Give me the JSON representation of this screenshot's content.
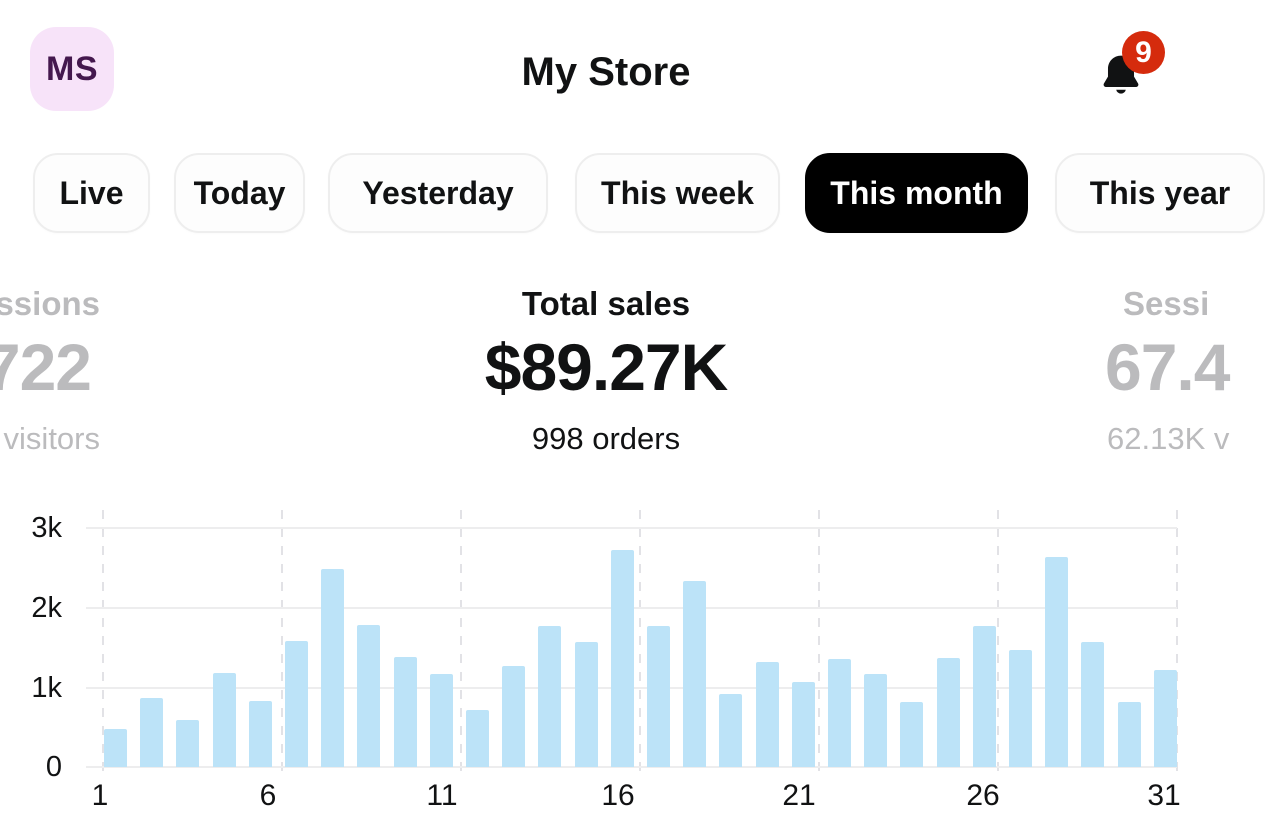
{
  "header": {
    "avatar_initials": "MS",
    "title": "My Store",
    "notification_count": "9",
    "icons": {
      "bell": "bell-icon"
    }
  },
  "tabs": {
    "items": [
      {
        "label": "Live",
        "selected": false
      },
      {
        "label": "Today",
        "selected": false
      },
      {
        "label": "Yesterday",
        "selected": false
      },
      {
        "label": "This week",
        "selected": false
      },
      {
        "label": "This month",
        "selected": true
      },
      {
        "label": "This year",
        "selected": false
      }
    ]
  },
  "stats": {
    "left_partial": {
      "label": "ssions",
      "value": "722",
      "subtitle": "visitors"
    },
    "center": {
      "label": "Total sales",
      "value": "$89.27K",
      "subtitle": "998 orders"
    },
    "right_partial": {
      "label": "Sessi",
      "value": "67.4",
      "subtitle": "62.13K v"
    }
  },
  "colors": {
    "bar_blue": "#BCE3F8",
    "badge_red": "#D52B0D",
    "avatar_bg": "#F7E3F9",
    "avatar_text": "#44184E",
    "selected_tab_bg": "#000000",
    "muted_stat_text": "#BBBBBD",
    "gridline": "#EDEDEE"
  },
  "chart_data": {
    "type": "bar",
    "title": "",
    "xlabel": "",
    "ylabel": "",
    "x": [
      1,
      2,
      3,
      4,
      5,
      6,
      7,
      8,
      9,
      10,
      11,
      12,
      13,
      14,
      15,
      16,
      17,
      18,
      19,
      20,
      21,
      22,
      23,
      24,
      25,
      26,
      27,
      28,
      29,
      30
    ],
    "values": [
      480,
      870,
      590,
      1180,
      830,
      1580,
      2480,
      1780,
      1380,
      1170,
      720,
      1270,
      1770,
      1570,
      2720,
      1770,
      2330,
      920,
      1320,
      1070,
      1360,
      1170,
      820,
      1370,
      1770,
      1470,
      2630,
      1570,
      820,
      1220
    ],
    "x_tick_labels": [
      "1",
      "6",
      "11",
      "16",
      "21",
      "26",
      "31"
    ],
    "y_tick_labels": [
      "0",
      "1k",
      "2k",
      "3k"
    ],
    "ylim": [
      0,
      3000
    ],
    "grid": true,
    "legend": "none",
    "bar_color": "#BCE3F8"
  }
}
